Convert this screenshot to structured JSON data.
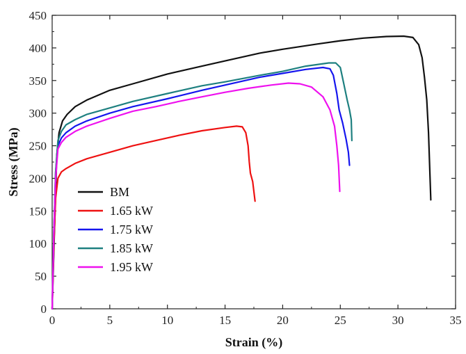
{
  "chart_data": {
    "type": "line",
    "title": "",
    "xlabel": "Strain (%)",
    "ylabel": "Stress (MPa)",
    "xlim": [
      0,
      35
    ],
    "ylim": [
      0,
      450
    ],
    "xticks": [
      0,
      5,
      10,
      15,
      20,
      25,
      30,
      35
    ],
    "yticks": [
      0,
      50,
      100,
      150,
      200,
      250,
      300,
      350,
      400,
      450
    ],
    "legend_position": "left-center",
    "series": [
      {
        "name": "BM",
        "color": "#111111",
        "points": [
          [
            0,
            0
          ],
          [
            0.2,
            120
          ],
          [
            0.4,
            235
          ],
          [
            0.6,
            270
          ],
          [
            0.9,
            288
          ],
          [
            1.3,
            298
          ],
          [
            2,
            310
          ],
          [
            3,
            320
          ],
          [
            5,
            335
          ],
          [
            7,
            345
          ],
          [
            10,
            360
          ],
          [
            13,
            372
          ],
          [
            15,
            380
          ],
          [
            18,
            392
          ],
          [
            20,
            398
          ],
          [
            23,
            406
          ],
          [
            25,
            411
          ],
          [
            27,
            415
          ],
          [
            29,
            417.5
          ],
          [
            30.5,
            418
          ],
          [
            31.3,
            416
          ],
          [
            31.8,
            405
          ],
          [
            32.1,
            385
          ],
          [
            32.3,
            355
          ],
          [
            32.5,
            320
          ],
          [
            32.65,
            270
          ],
          [
            32.75,
            220
          ],
          [
            32.85,
            167
          ]
        ]
      },
      {
        "name": "1.65 kW",
        "color": "#ee1111",
        "points": [
          [
            0,
            0
          ],
          [
            0.15,
            100
          ],
          [
            0.3,
            170
          ],
          [
            0.5,
            200
          ],
          [
            0.8,
            210
          ],
          [
            1.2,
            215
          ],
          [
            2,
            223
          ],
          [
            3,
            230
          ],
          [
            5,
            240
          ],
          [
            7,
            250
          ],
          [
            9,
            258
          ],
          [
            11,
            266
          ],
          [
            13,
            273
          ],
          [
            15,
            278
          ],
          [
            16,
            280
          ],
          [
            16.5,
            279
          ],
          [
            16.8,
            270
          ],
          [
            17.0,
            250
          ],
          [
            17.1,
            225
          ],
          [
            17.2,
            208
          ],
          [
            17.4,
            195
          ],
          [
            17.6,
            165
          ]
        ]
      },
      {
        "name": "1.75 kW",
        "color": "#1515ee",
        "points": [
          [
            0,
            0
          ],
          [
            0.15,
            120
          ],
          [
            0.3,
            210
          ],
          [
            0.5,
            250
          ],
          [
            0.8,
            262
          ],
          [
            1.2,
            270
          ],
          [
            2,
            280
          ],
          [
            3,
            288
          ],
          [
            5,
            300
          ],
          [
            7,
            310
          ],
          [
            10,
            322
          ],
          [
            13,
            335
          ],
          [
            15,
            343
          ],
          [
            18,
            355
          ],
          [
            20,
            361
          ],
          [
            22,
            367
          ],
          [
            23.5,
            370
          ],
          [
            24.1,
            368
          ],
          [
            24.4,
            358
          ],
          [
            24.7,
            330
          ],
          [
            24.9,
            305
          ],
          [
            25.2,
            285
          ],
          [
            25.5,
            260
          ],
          [
            25.7,
            240
          ],
          [
            25.8,
            220
          ]
        ]
      },
      {
        "name": "1.85 kW",
        "color": "#1e8080",
        "points": [
          [
            0,
            0
          ],
          [
            0.15,
            120
          ],
          [
            0.3,
            210
          ],
          [
            0.5,
            258
          ],
          [
            0.8,
            272
          ],
          [
            1.2,
            282
          ],
          [
            2,
            290
          ],
          [
            3,
            298
          ],
          [
            5,
            308
          ],
          [
            7,
            318
          ],
          [
            10,
            330
          ],
          [
            13,
            342
          ],
          [
            15,
            348
          ],
          [
            18,
            358
          ],
          [
            20,
            364
          ],
          [
            22,
            372
          ],
          [
            24,
            377
          ],
          [
            24.6,
            377
          ],
          [
            25,
            370
          ],
          [
            25.3,
            345
          ],
          [
            25.6,
            320
          ],
          [
            25.8,
            305
          ],
          [
            25.95,
            290
          ],
          [
            26,
            258
          ]
        ]
      },
      {
        "name": "1.95 kW",
        "color": "#ee11ee",
        "points": [
          [
            0,
            0
          ],
          [
            0.15,
            120
          ],
          [
            0.3,
            200
          ],
          [
            0.5,
            245
          ],
          [
            0.8,
            255
          ],
          [
            1.2,
            263
          ],
          [
            2,
            272
          ],
          [
            3,
            280
          ],
          [
            5,
            292
          ],
          [
            7,
            303
          ],
          [
            9,
            310
          ],
          [
            11,
            318
          ],
          [
            13,
            325
          ],
          [
            15,
            332
          ],
          [
            17,
            338
          ],
          [
            19,
            343
          ],
          [
            20.5,
            346
          ],
          [
            21.5,
            345
          ],
          [
            22.5,
            340
          ],
          [
            23.5,
            325
          ],
          [
            24.1,
            305
          ],
          [
            24.5,
            280
          ],
          [
            24.7,
            250
          ],
          [
            24.85,
            220
          ],
          [
            24.95,
            180
          ]
        ]
      }
    ]
  }
}
